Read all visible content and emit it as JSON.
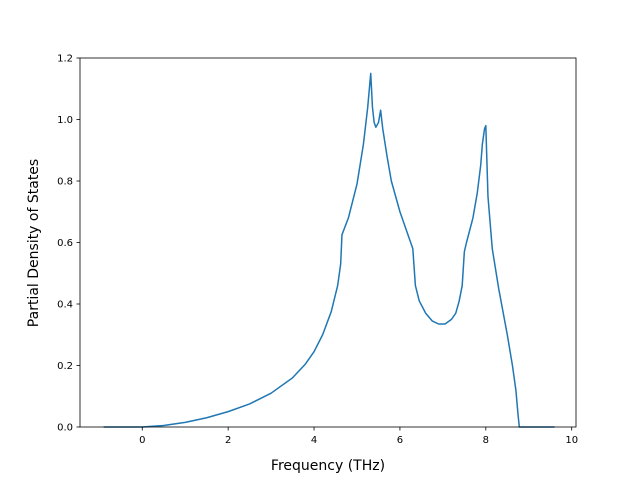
{
  "chart_data": {
    "type": "line",
    "title": "",
    "xlabel": "Frequency (THz)",
    "ylabel": "Partial Density of States",
    "xlim": [
      -1.45,
      10.1
    ],
    "ylim": [
      0.0,
      1.2
    ],
    "x_ticks": [
      0,
      2,
      4,
      6,
      8,
      10
    ],
    "x_tick_labels": [
      "0",
      "2",
      "4",
      "6",
      "8",
      "10"
    ],
    "y_ticks": [
      0.0,
      0.2,
      0.4,
      0.6,
      0.8,
      1.0,
      1.2
    ],
    "y_tick_labels": [
      "0.0",
      "0.2",
      "0.4",
      "0.6",
      "0.8",
      "1.0",
      "1.2"
    ],
    "grid": false,
    "legend": false,
    "series": [
      {
        "color": "#1f77b4",
        "x": [
          -0.9,
          -0.5,
          0.0,
          0.5,
          1.0,
          1.5,
          2.0,
          2.5,
          3.0,
          3.5,
          3.8,
          4.0,
          4.2,
          4.4,
          4.55,
          4.62,
          4.65,
          4.8,
          5.0,
          5.15,
          5.25,
          5.32,
          5.36,
          5.4,
          5.44,
          5.5,
          5.55,
          5.6,
          5.7,
          5.8,
          6.0,
          6.2,
          6.3,
          6.36,
          6.45,
          6.6,
          6.75,
          6.9,
          7.05,
          7.2,
          7.3,
          7.38,
          7.45,
          7.5,
          7.55,
          7.7,
          7.8,
          7.88,
          7.92,
          7.97,
          8.0,
          8.05,
          8.15,
          8.3,
          8.5,
          8.62,
          8.7,
          8.75,
          8.78,
          9.0,
          9.3,
          9.6
        ],
        "y": [
          0.0,
          0.0,
          0.0,
          0.005,
          0.015,
          0.03,
          0.05,
          0.075,
          0.11,
          0.16,
          0.205,
          0.245,
          0.3,
          0.375,
          0.46,
          0.53,
          0.625,
          0.68,
          0.79,
          0.92,
          1.04,
          1.15,
          1.04,
          0.99,
          0.975,
          0.99,
          1.03,
          0.97,
          0.88,
          0.8,
          0.7,
          0.62,
          0.58,
          0.46,
          0.41,
          0.37,
          0.345,
          0.335,
          0.335,
          0.35,
          0.37,
          0.41,
          0.46,
          0.57,
          0.6,
          0.68,
          0.76,
          0.85,
          0.92,
          0.97,
          0.98,
          0.75,
          0.58,
          0.45,
          0.3,
          0.2,
          0.12,
          0.04,
          0.0,
          0.0,
          0.0,
          0.0
        ]
      }
    ]
  }
}
